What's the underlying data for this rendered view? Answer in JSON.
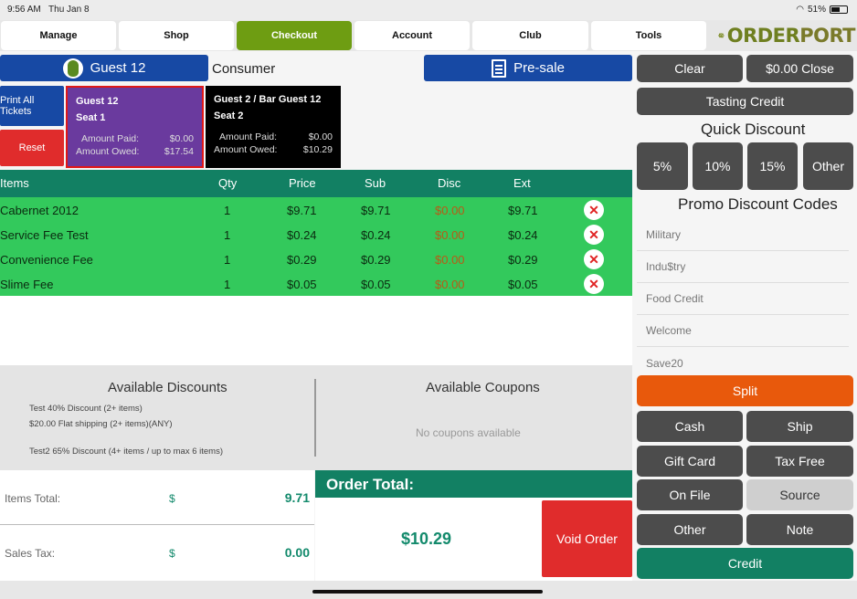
{
  "status": {
    "time": "9:56 AM",
    "date": "Thu Jan 8",
    "battery": "51%"
  },
  "nav": {
    "tabs": [
      "Manage",
      "Shop",
      "Checkout",
      "Account",
      "Club",
      "Tools"
    ],
    "active": "Checkout",
    "logo_text_a": "ORDER",
    "logo_text_b": "PORT"
  },
  "header": {
    "guest_label": "Guest 12",
    "customer_type": "Consumer",
    "presale_label": "Pre-sale"
  },
  "tickets": {
    "print_all": "Print All Tickets",
    "reset": "Reset",
    "seats": [
      {
        "name": "Guest 12",
        "seat": "Seat 1",
        "paid_label": "Amount Paid:",
        "paid": "$0.00",
        "owed_label": "Amount Owed:",
        "owed": "$17.54"
      },
      {
        "name": "Guest 2 / Bar Guest 12",
        "seat": "Seat 2",
        "paid_label": "Amount Paid:",
        "paid": "$0.00",
        "owed_label": "Amount Owed:",
        "owed": "$10.29"
      }
    ]
  },
  "table": {
    "headers": [
      "Items",
      "Qty",
      "Price",
      "Sub",
      "Disc",
      "Ext"
    ],
    "rows": [
      {
        "item": "Cabernet 2012",
        "qty": "1",
        "price": "$9.71",
        "sub": "$9.71",
        "disc": "$0.00",
        "ext": "$9.71"
      },
      {
        "item": "Service Fee Test",
        "qty": "1",
        "price": "$0.24",
        "sub": "$0.24",
        "disc": "$0.00",
        "ext": "$0.24"
      },
      {
        "item": "Convenience Fee",
        "qty": "1",
        "price": "$0.29",
        "sub": "$0.29",
        "disc": "$0.00",
        "ext": "$0.29"
      },
      {
        "item": "Slime Fee",
        "qty": "1",
        "price": "$0.05",
        "sub": "$0.05",
        "disc": "$0.00",
        "ext": "$0.05"
      }
    ]
  },
  "discounts": {
    "title": "Available Discounts",
    "items": [
      "Test 40% Discount (2+ items)",
      "$20.00 Flat shipping (2+ items)(ANY)",
      "Test2 65% Discount (4+ items / up to max 6 items)"
    ],
    "coupons_title": "Available Coupons",
    "coupons_empty": "No coupons available"
  },
  "totals": {
    "items_total_label": "Items Total:",
    "items_total_currency": "$",
    "items_total": "9.71",
    "sales_tax_label": "Sales Tax:",
    "sales_tax_currency": "$",
    "sales_tax": "0.00",
    "order_total_label": "Order Total:",
    "order_total": "$10.29",
    "void_label": "Void Order"
  },
  "right": {
    "clear": "Clear",
    "close": "$0.00 Close",
    "tasting_credit": "Tasting Credit",
    "quick_discount_title": "Quick Discount",
    "quick_discounts": [
      "5%",
      "10%",
      "15%",
      "Other"
    ],
    "promo_title": "Promo Discount Codes",
    "promo_codes": [
      "Military",
      "Indu$try",
      "Food Credit",
      "Welcome",
      "Save20"
    ],
    "split": "Split",
    "cash": "Cash",
    "ship": "Ship",
    "gift_card": "Gift Card",
    "tax_free": "Tax Free",
    "on_file": "On File",
    "source": "Source",
    "other": "Other",
    "note": "Note",
    "credit": "Credit"
  }
}
